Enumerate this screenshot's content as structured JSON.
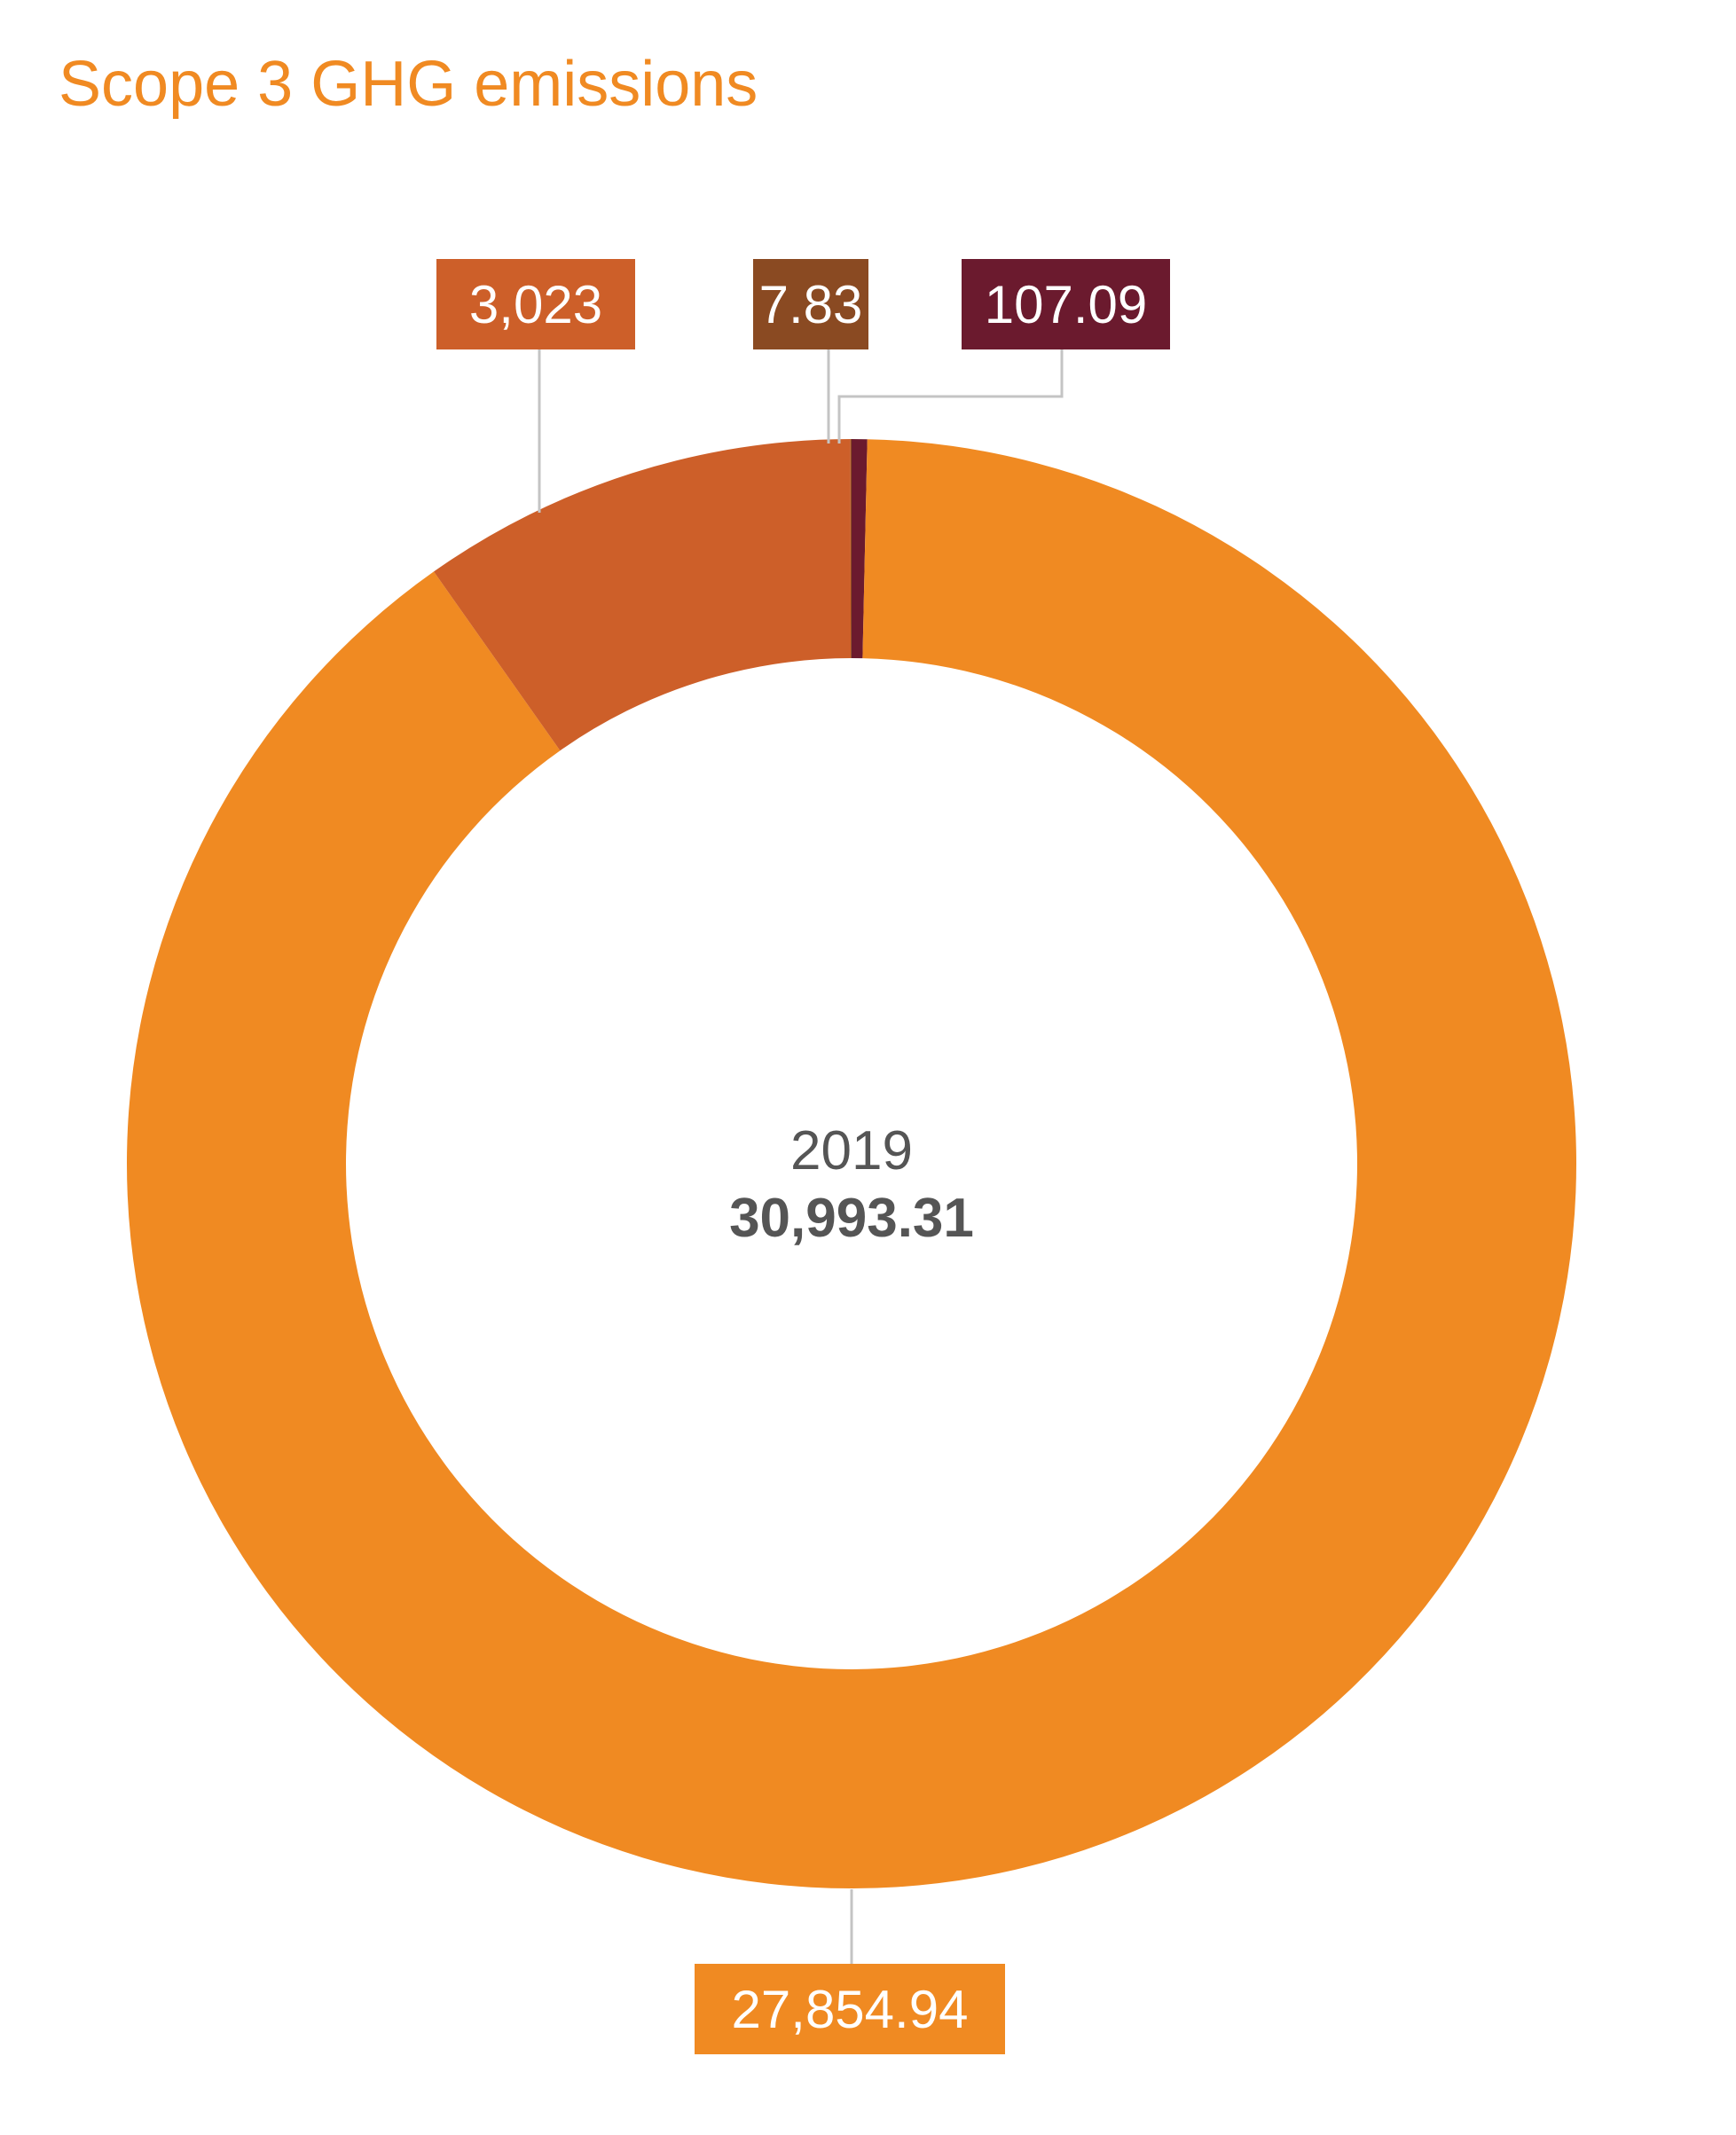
{
  "chart_data": {
    "type": "pie",
    "title": "Scope 3 GHG emissions",
    "center": {
      "year": "2019",
      "total": "30,993.31"
    },
    "series": [
      {
        "values": [
          27854.94,
          3023,
          7.83,
          107.09
        ],
        "labels": [
          "27,854.94",
          "3,023",
          "7.83",
          "107.09"
        ],
        "colors": [
          "#f08a22",
          "#cd5f29",
          "#8a4a22",
          "#6b1a2e"
        ]
      }
    ],
    "legend": "none",
    "grid": false
  }
}
